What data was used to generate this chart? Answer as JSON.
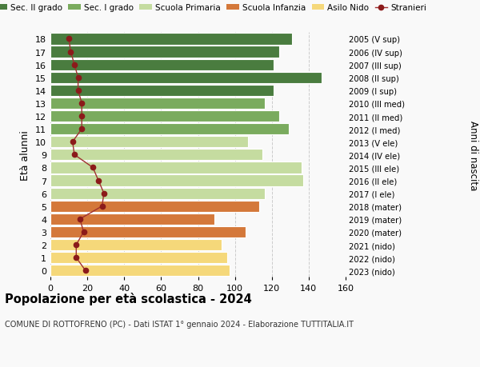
{
  "ages": [
    18,
    17,
    16,
    15,
    14,
    13,
    12,
    11,
    10,
    9,
    8,
    7,
    6,
    5,
    4,
    3,
    2,
    1,
    0
  ],
  "bar_values": [
    131,
    124,
    121,
    147,
    121,
    116,
    124,
    129,
    107,
    115,
    136,
    137,
    116,
    113,
    89,
    106,
    93,
    96,
    97
  ],
  "bar_colors": [
    "#4a7c3f",
    "#4a7c3f",
    "#4a7c3f",
    "#4a7c3f",
    "#4a7c3f",
    "#7aab5e",
    "#7aab5e",
    "#7aab5e",
    "#c5dca0",
    "#c5dca0",
    "#c5dca0",
    "#c5dca0",
    "#c5dca0",
    "#d4783a",
    "#d4783a",
    "#d4783a",
    "#f5d87a",
    "#f5d87a",
    "#f5d87a"
  ],
  "stranieri_values": [
    10,
    11,
    13,
    15,
    15,
    17,
    17,
    17,
    12,
    13,
    23,
    26,
    29,
    28,
    16,
    18,
    14,
    14,
    19
  ],
  "right_labels": [
    "2005 (V sup)",
    "2006 (IV sup)",
    "2007 (III sup)",
    "2008 (II sup)",
    "2009 (I sup)",
    "2010 (III med)",
    "2011 (II med)",
    "2012 (I med)",
    "2013 (V ele)",
    "2014 (IV ele)",
    "2015 (III ele)",
    "2016 (II ele)",
    "2017 (I ele)",
    "2018 (mater)",
    "2019 (mater)",
    "2020 (mater)",
    "2021 (nido)",
    "2022 (nido)",
    "2023 (nido)"
  ],
  "ylabel_left": "Età alunni",
  "ylabel_right": "Anni di nascita",
  "title": "Popolazione per età scolastica - 2024",
  "subtitle": "COMUNE DI ROTTOFRENO (PC) - Dati ISTAT 1° gennaio 2024 - Elaborazione TUTTITALIA.IT",
  "legend_labels": [
    "Sec. II grado",
    "Sec. I grado",
    "Scuola Primaria",
    "Scuola Infanzia",
    "Asilo Nido",
    "Stranieri"
  ],
  "legend_colors": [
    "#4a7c3f",
    "#7aab5e",
    "#c5dca0",
    "#d4783a",
    "#f5d87a",
    "#8b1a1a"
  ],
  "xlim": [
    0,
    160
  ],
  "xticks": [
    0,
    20,
    40,
    60,
    80,
    100,
    120,
    140,
    160
  ],
  "background_color": "#f9f9f9",
  "grid_color": "#cccccc",
  "stranieri_color": "#8b1a1a",
  "stranieri_line_color": "#a03030"
}
